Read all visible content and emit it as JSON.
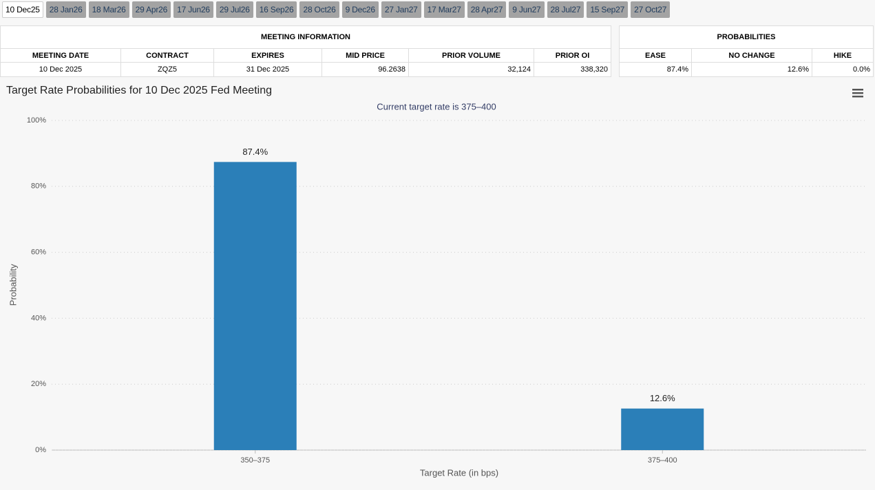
{
  "tabs": [
    "10 Dec25",
    "28 Jan26",
    "18 Mar26",
    "29 Apr26",
    "17 Jun26",
    "29 Jul26",
    "16 Sep26",
    "28 Oct26",
    "9 Dec26",
    "27 Jan27",
    "17 Mar27",
    "28 Apr27",
    "9 Jun27",
    "28 Jul27",
    "15 Sep27",
    "27 Oct27"
  ],
  "meeting_information": {
    "title": "MEETING INFORMATION",
    "headers": [
      "MEETING DATE",
      "CONTRACT",
      "EXPIRES",
      "MID PRICE",
      "PRIOR VOLUME",
      "PRIOR OI"
    ],
    "row": [
      "10 Dec 2025",
      "ZQZ5",
      "31 Dec 2025",
      "96.2638",
      "32,124",
      "338,320"
    ]
  },
  "probabilities": {
    "title": "PROBABILITIES",
    "headers": [
      "EASE",
      "NO CHANGE",
      "HIKE"
    ],
    "row": [
      "87.4%",
      "12.6%",
      "0.0%"
    ]
  },
  "chart_data": {
    "type": "bar",
    "title": "Target Rate Probabilities for 10 Dec 2025 Fed Meeting",
    "subtitle": "Current target rate is 375–400",
    "x_label": "Target Rate (in bps)",
    "y_label": "Probability",
    "categories": [
      "350–375",
      "375–400"
    ],
    "values": [
      87.4,
      12.6
    ],
    "value_labels": [
      "87.4%",
      "12.6%"
    ],
    "color": "#2b7fb8",
    "ylim": [
      0,
      100
    ],
    "yticks": [
      {
        "value": 0,
        "label": "0%"
      },
      {
        "value": 20,
        "label": "20%"
      },
      {
        "value": 40,
        "label": "40%"
      },
      {
        "value": 60,
        "label": "60%"
      },
      {
        "value": 80,
        "label": "80%"
      },
      {
        "value": 100,
        "label": "100%"
      }
    ],
    "grid": true
  }
}
